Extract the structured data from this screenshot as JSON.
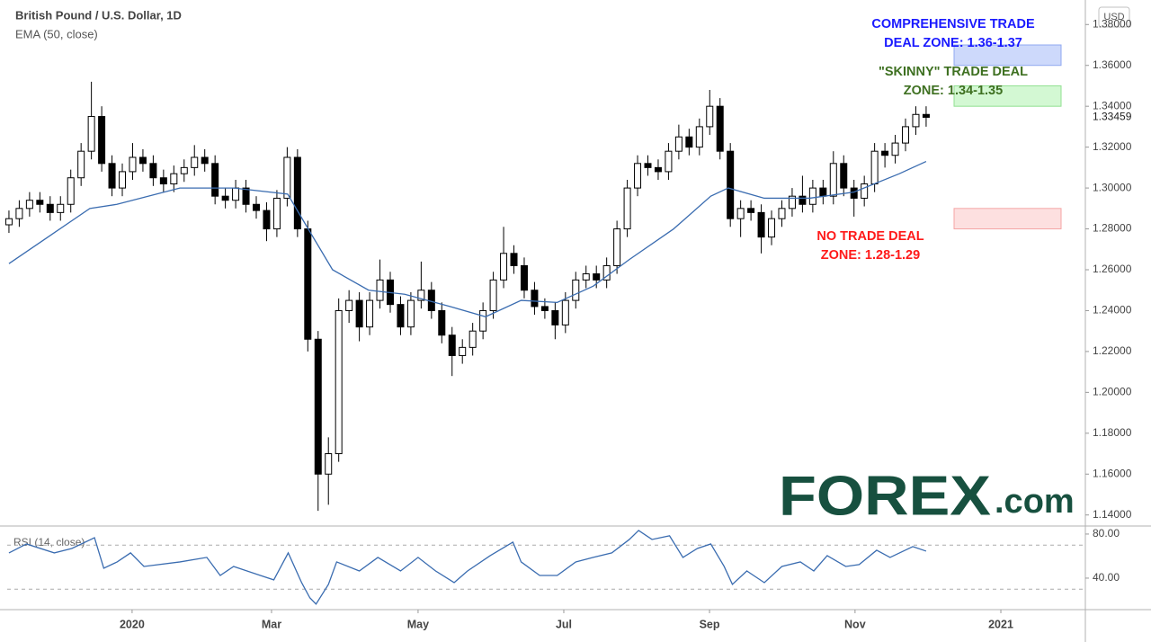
{
  "chart_data": [
    {
      "type": "candlestick",
      "title": "British Pound / U.S. Dollar, 1D",
      "currency": "USD",
      "xlim": [
        -0.17,
        104.45
      ],
      "ylim": [
        1.1346,
        1.392
      ],
      "yticks": [
        {
          "value": 1.14,
          "label": "1.14000"
        },
        {
          "value": 1.16,
          "label": "1.16000"
        },
        {
          "value": 1.18,
          "label": "1.18000"
        },
        {
          "value": 1.2,
          "label": "1.20000"
        },
        {
          "value": 1.22,
          "label": "1.22000"
        },
        {
          "value": 1.24,
          "label": "1.24000"
        },
        {
          "value": 1.26,
          "label": "1.26000"
        },
        {
          "value": 1.28,
          "label": "1.28000"
        },
        {
          "value": 1.3,
          "label": "1.30000"
        },
        {
          "value": 1.32,
          "label": "1.32000"
        },
        {
          "value": 1.34,
          "label": "1.34000"
        },
        {
          "value": 1.36,
          "label": "1.36000"
        },
        {
          "value": 1.38,
          "label": "1.38000"
        }
      ],
      "last_price": 1.33459,
      "up_color": "#ffffff",
      "down_color": "#000000",
      "open": [
        1.282,
        1.285,
        1.29,
        1.294,
        1.292,
        1.288,
        1.292,
        1.305,
        1.318,
        1.335,
        1.312,
        1.3,
        1.308,
        1.315,
        1.312,
        1.305,
        1.302,
        1.307,
        1.31,
        1.315,
        1.312,
        1.296,
        1.294,
        1.3,
        1.292,
        1.289,
        1.28,
        1.295,
        1.315,
        1.28,
        1.226,
        1.16,
        1.17,
        1.24,
        1.245,
        1.232,
        1.245,
        1.255,
        1.243,
        1.232,
        1.245,
        1.25,
        1.24,
        1.228,
        1.218,
        1.222,
        1.23,
        1.24,
        1.255,
        1.268,
        1.262,
        1.25,
        1.242,
        1.24,
        1.233,
        1.245,
        1.255,
        1.258,
        1.255,
        1.262,
        1.28,
        1.3,
        1.312,
        1.31,
        1.308,
        1.318,
        1.325,
        1.32,
        1.33,
        1.34,
        1.318,
        1.285,
        1.29,
        1.288,
        1.276,
        1.285,
        1.29,
        1.296,
        1.292,
        1.3,
        1.296,
        1.312,
        1.3,
        1.295,
        1.302,
        1.318,
        1.316,
        1.322,
        1.33,
        1.336
      ],
      "high": [
        1.289,
        1.294,
        1.298,
        1.298,
        1.296,
        1.296,
        1.309,
        1.322,
        1.352,
        1.34,
        1.316,
        1.312,
        1.322,
        1.319,
        1.316,
        1.309,
        1.311,
        1.314,
        1.321,
        1.319,
        1.316,
        1.3,
        1.304,
        1.304,
        1.296,
        1.293,
        1.299,
        1.32,
        1.319,
        1.284,
        1.23,
        1.178,
        1.246,
        1.25,
        1.249,
        1.249,
        1.265,
        1.259,
        1.247,
        1.249,
        1.264,
        1.254,
        1.244,
        1.232,
        1.226,
        1.234,
        1.244,
        1.259,
        1.281,
        1.272,
        1.266,
        1.254,
        1.246,
        1.244,
        1.249,
        1.259,
        1.262,
        1.262,
        1.266,
        1.284,
        1.304,
        1.316,
        1.316,
        1.314,
        1.322,
        1.331,
        1.329,
        1.334,
        1.348,
        1.344,
        1.322,
        1.294,
        1.294,
        1.292,
        1.289,
        1.294,
        1.3,
        1.306,
        1.304,
        1.304,
        1.318,
        1.316,
        1.304,
        1.306,
        1.322,
        1.322,
        1.326,
        1.334,
        1.34,
        1.34
      ],
      "low": [
        1.278,
        1.281,
        1.286,
        1.288,
        1.284,
        1.284,
        1.288,
        1.301,
        1.314,
        1.308,
        1.296,
        1.296,
        1.304,
        1.308,
        1.301,
        1.298,
        1.298,
        1.303,
        1.306,
        1.308,
        1.292,
        1.29,
        1.29,
        1.288,
        1.285,
        1.274,
        1.276,
        1.291,
        1.276,
        1.22,
        1.142,
        1.145,
        1.166,
        1.234,
        1.225,
        1.228,
        1.241,
        1.239,
        1.228,
        1.228,
        1.241,
        1.236,
        1.224,
        1.208,
        1.214,
        1.218,
        1.226,
        1.236,
        1.251,
        1.258,
        1.246,
        1.238,
        1.236,
        1.226,
        1.229,
        1.241,
        1.251,
        1.251,
        1.251,
        1.258,
        1.276,
        1.296,
        1.306,
        1.304,
        1.304,
        1.314,
        1.316,
        1.316,
        1.326,
        1.314,
        1.281,
        1.276,
        1.284,
        1.268,
        1.272,
        1.281,
        1.286,
        1.288,
        1.288,
        1.292,
        1.292,
        1.296,
        1.286,
        1.291,
        1.298,
        1.31,
        1.312,
        1.318,
        1.326,
        1.33
      ],
      "close": [
        1.285,
        1.29,
        1.294,
        1.292,
        1.288,
        1.292,
        1.305,
        1.318,
        1.335,
        1.312,
        1.3,
        1.308,
        1.315,
        1.312,
        1.305,
        1.302,
        1.307,
        1.31,
        1.315,
        1.312,
        1.296,
        1.294,
        1.3,
        1.292,
        1.289,
        1.28,
        1.295,
        1.315,
        1.28,
        1.226,
        1.16,
        1.17,
        1.24,
        1.245,
        1.232,
        1.245,
        1.255,
        1.243,
        1.232,
        1.245,
        1.25,
        1.24,
        1.228,
        1.218,
        1.222,
        1.23,
        1.24,
        1.255,
        1.268,
        1.262,
        1.25,
        1.242,
        1.24,
        1.233,
        1.245,
        1.255,
        1.258,
        1.255,
        1.262,
        1.28,
        1.3,
        1.312,
        1.31,
        1.308,
        1.318,
        1.325,
        1.32,
        1.33,
        1.34,
        1.318,
        1.285,
        1.29,
        1.288,
        1.276,
        1.285,
        1.29,
        1.296,
        1.292,
        1.3,
        1.296,
        1.312,
        1.3,
        1.295,
        1.302,
        1.318,
        1.316,
        1.322,
        1.33,
        1.336,
        1.33459
      ],
      "series": [
        {
          "name": "EMA (50, close)",
          "color": "#3a6cb0",
          "x": [
            0,
            3.49,
            7.85,
            10.47,
            16.58,
            21.82,
            27.05,
            28.8,
            31.4,
            34.9,
            38.4,
            42.8,
            46.25,
            49.7,
            53.2,
            56.7,
            60.2,
            64.5,
            68.1,
            69.8,
            73.3,
            77.7,
            82.0,
            86.4,
            89.0
          ],
          "values": [
            1.263,
            1.275,
            1.29,
            1.292,
            1.3,
            1.3,
            1.297,
            1.282,
            1.26,
            1.25,
            1.248,
            1.242,
            1.237,
            1.245,
            1.244,
            1.252,
            1.265,
            1.28,
            1.296,
            1.3,
            1.295,
            1.295,
            1.298,
            1.307,
            1.313
          ]
        }
      ],
      "zones": [
        {
          "label": [
            "COMPREHENSIVE TRADE",
            "DEAL ZONE: 1.36-1.37"
          ],
          "range": [
            1.36,
            1.37
          ],
          "fill": "#cdd9fb",
          "stroke": "#8fa8f0",
          "label_color": "#1a1aff"
        },
        {
          "label": [
            "\"SKINNY\" TRADE DEAL",
            "ZONE: 1.34-1.35"
          ],
          "range": [
            1.34,
            1.35
          ],
          "fill": "#d3f8d3",
          "stroke": "#92e092",
          "label_color": "#3e7021"
        },
        {
          "label": [
            "NO TRADE DEAL",
            "ZONE: 1.28-1.29"
          ],
          "range": [
            1.28,
            1.29
          ],
          "fill": "#fde0e0",
          "stroke": "#f5a5a5",
          "label_color": "#ff1a1a"
        }
      ],
      "logo": {
        "main": "FOREX",
        "suffix": ".com"
      }
    },
    {
      "type": "line",
      "xlim": [
        -0.17,
        104.45
      ],
      "ylim": [
        11.4,
        87.3
      ],
      "yticks": [
        {
          "value": 80,
          "label": "80.00"
        },
        {
          "value": 40,
          "label": "40.00"
        }
      ],
      "bands": [
        70,
        30
      ],
      "xticks": [
        {
          "value": 11.95,
          "label": "2020"
        },
        {
          "value": 25.48,
          "label": "Mar"
        },
        {
          "value": 39.7,
          "label": "May"
        },
        {
          "value": 53.84,
          "label": "Jul"
        },
        {
          "value": 67.98,
          "label": "Sep"
        },
        {
          "value": 82.1,
          "label": "Nov"
        },
        {
          "value": 96.25,
          "label": "2021"
        }
      ],
      "series": [
        {
          "name": "RSI (14, close)",
          "color": "#3a6cb0",
          "x": [
            0,
            1.7,
            4.4,
            6.1,
            8.3,
            9.2,
            10.5,
            11.8,
            13.1,
            16.6,
            19.2,
            20.5,
            21.8,
            24.4,
            25.7,
            27.1,
            28.4,
            29.2,
            29.8,
            31.0,
            31.8,
            34.0,
            35.8,
            38.0,
            39.7,
            41.4,
            43.2,
            44.5,
            46.7,
            48.9,
            49.7,
            51.5,
            53.2,
            55.0,
            56.7,
            58.5,
            60.2,
            61.1,
            62.4,
            64.1,
            65.4,
            66.8,
            68.1,
            69.4,
            70.2,
            71.6,
            73.3,
            75.0,
            76.8,
            78.1,
            79.4,
            81.2,
            82.5,
            84.2,
            85.5,
            87.7,
            89.0
          ],
          "values": [
            62.9,
            71.0,
            62.9,
            66.9,
            76.7,
            49.0,
            54.7,
            62.9,
            50.6,
            54.7,
            58.8,
            42.4,
            50.6,
            42.4,
            38.4,
            62.9,
            35.9,
            22.1,
            16.4,
            34.3,
            54.7,
            46.5,
            58.8,
            46.5,
            58.8,
            46.5,
            35.9,
            46.5,
            60.4,
            72.7,
            54.7,
            42.4,
            42.4,
            54.7,
            58.8,
            62.9,
            75.1,
            83.3,
            75.1,
            78.4,
            58.8,
            66.9,
            71.0,
            50.6,
            34.3,
            46.5,
            35.9,
            50.6,
            54.7,
            46.5,
            60.4,
            50.6,
            52.3,
            65.3,
            58.8,
            68.6,
            64.5
          ]
        }
      ]
    }
  ]
}
